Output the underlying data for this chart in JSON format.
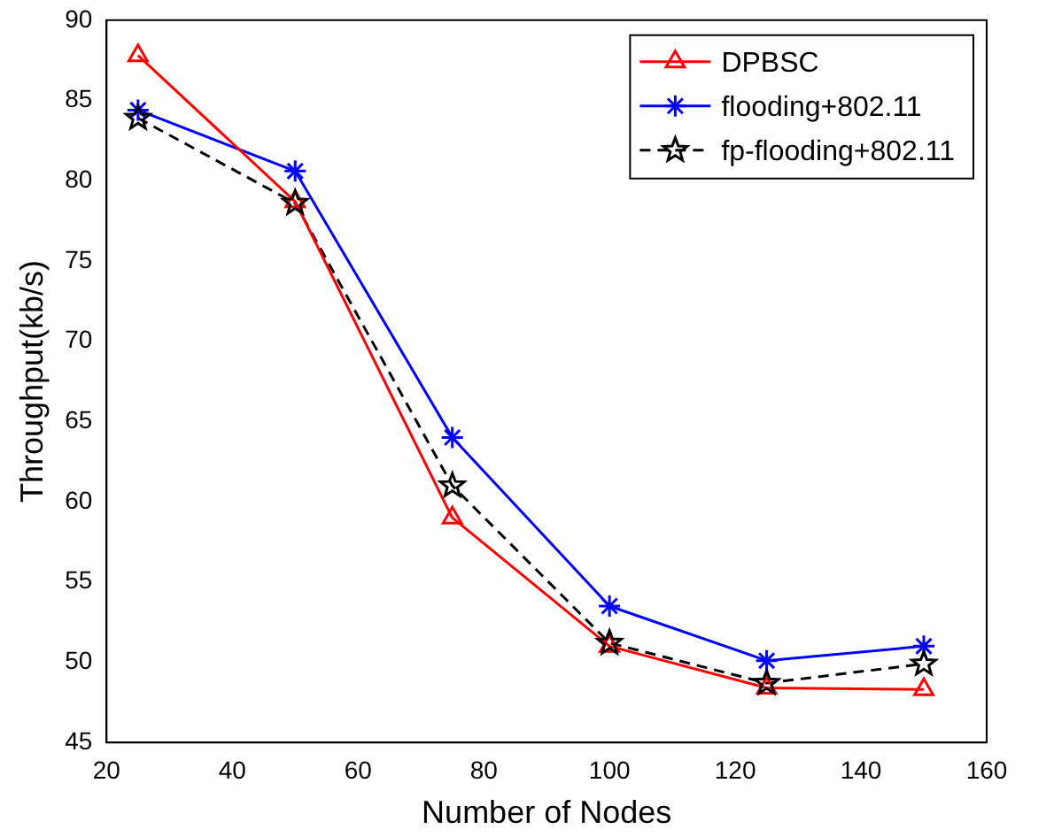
{
  "chart_data": {
    "type": "line",
    "xlabel": "Number of Nodes",
    "ylabel": "Throughput(kb/s)",
    "x": [
      25,
      50,
      75,
      100,
      125,
      150
    ],
    "series": [
      {
        "name": "DPBSC",
        "color": "#ff0000",
        "values": [
          87.8,
          78.7,
          59,
          51,
          48.4,
          48.3
        ],
        "marker": "triangle",
        "line_style": "solid"
      },
      {
        "name": "flooding+802.11",
        "color": "#0000ff",
        "values": [
          84.4,
          80.6,
          64,
          53.5,
          50.1,
          51
        ],
        "marker": "cross",
        "line_style": "solid"
      },
      {
        "name": "fp-flooding+802.11",
        "color": "#000000",
        "values": [
          83.9,
          78.6,
          61,
          51.2,
          48.7,
          49.9
        ],
        "marker": "star",
        "line_style": "dashed"
      }
    ],
    "xlim": [
      20,
      160
    ],
    "xticks": [
      20,
      40,
      60,
      80,
      100,
      120,
      140,
      160
    ],
    "ylim": [
      45,
      90
    ],
    "yticks": [
      45,
      50,
      55,
      60,
      65,
      70,
      75,
      80,
      85,
      90
    ],
    "grid": false,
    "legend": "top right"
  }
}
